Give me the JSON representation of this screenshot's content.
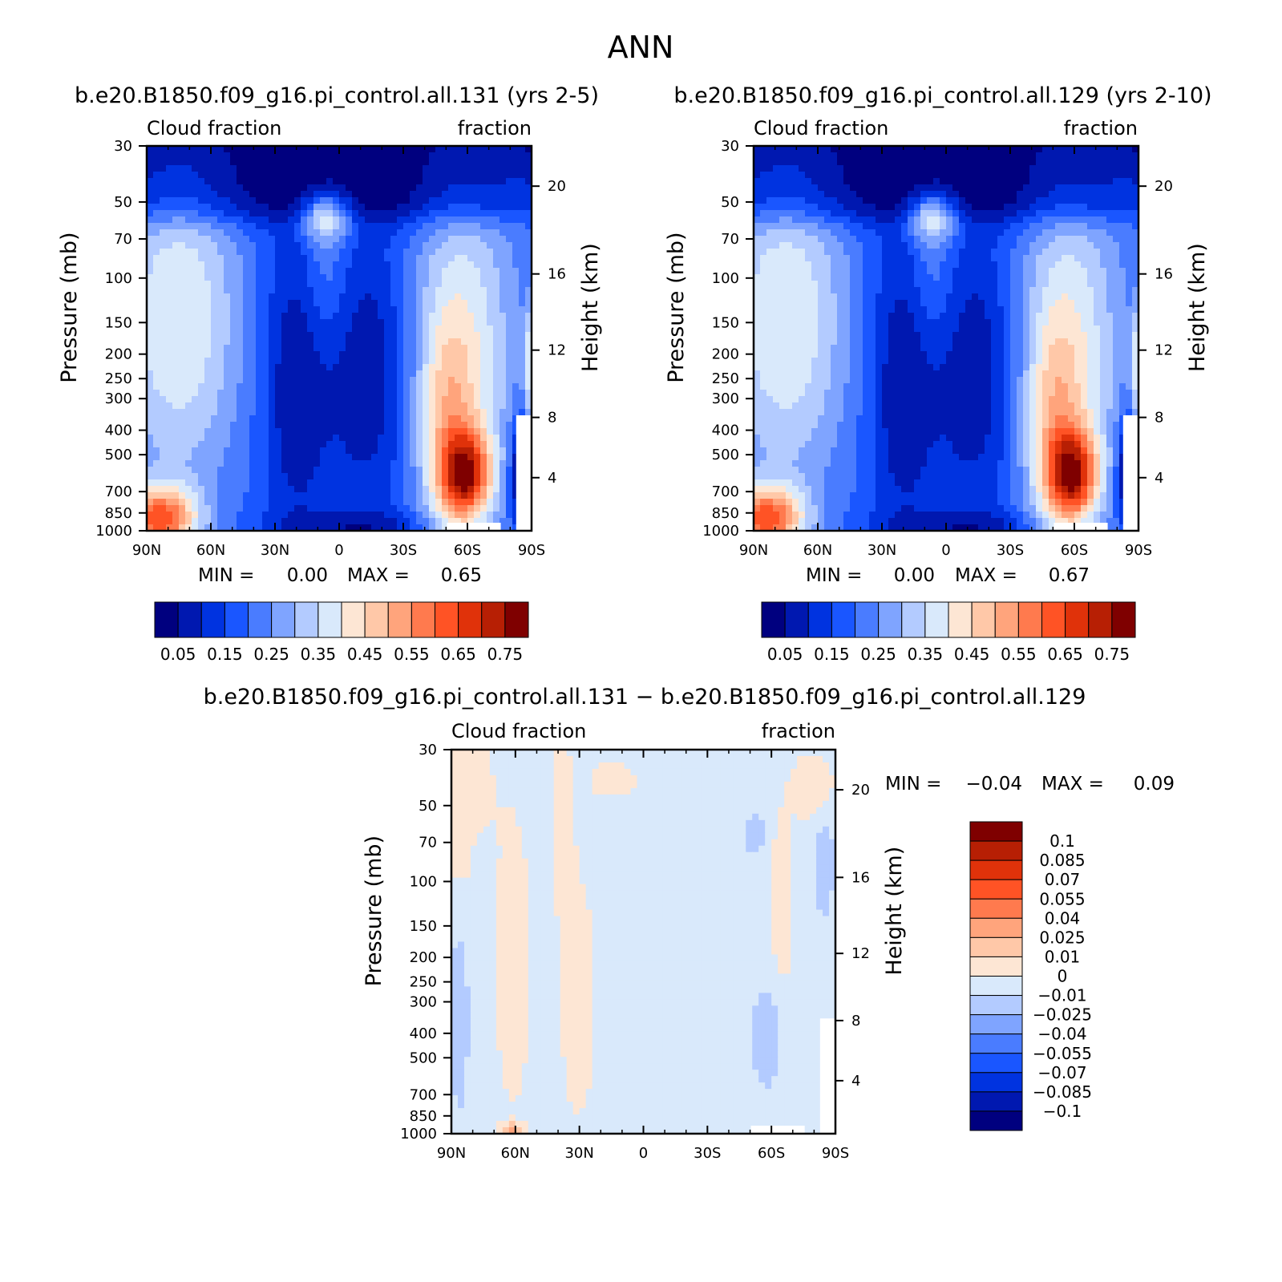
{
  "page_title": "ANN",
  "colors": {
    "main_scale": [
      "#00007f",
      "#0018b0",
      "#0033e0",
      "#1a56ff",
      "#4a7cff",
      "#7fa4ff",
      "#b3cbff",
      "#d9e9fb",
      "#fde6d4",
      "#ffc8a8",
      "#ffa47c",
      "#ff7a4e",
      "#ff5325",
      "#e0320a",
      "#b71f04",
      "#7f0000"
    ],
    "diff_scale": [
      "#00007f",
      "#0018b0",
      "#0033e0",
      "#1a56ff",
      "#4a7cff",
      "#7fa4ff",
      "#b3cbff",
      "#d9e9fb",
      "#fde6d4",
      "#ffc8a8",
      "#ffa47c",
      "#ff7a4e",
      "#ff5325",
      "#e0320a",
      "#b71f04",
      "#7f0000"
    ]
  },
  "chart_data": [
    {
      "type": "heatmap",
      "title": "b.e20.B1850.f09_g16.pi_control.all.131 (yrs 2-5)",
      "left_string": "Cloud fraction",
      "right_string": "fraction",
      "ylabel": "Pressure (mb)",
      "ylabel_right": "Height (km)",
      "x_ticks": [
        "90N",
        "60N",
        "30N",
        "0",
        "30S",
        "60S",
        "90S"
      ],
      "y_ticks": [
        "30",
        "50",
        "70",
        "100",
        "150",
        "200",
        "250",
        "300",
        "400",
        "500",
        "700",
        "850",
        "1000"
      ],
      "y_right_ticks": [
        "20",
        "16",
        "12",
        "8",
        "4"
      ],
      "min_label": "MIN =",
      "min_value": "0.00",
      "max_label": "MAX =",
      "max_value": "0.65",
      "colorbar_labels": [
        "0.05",
        "0.15",
        "0.25",
        "0.35",
        "0.45",
        "0.55",
        "0.65",
        "0.75"
      ],
      "contour_levels": [
        0.05,
        0.1,
        0.15,
        0.2,
        0.25,
        0.3,
        0.35,
        0.4,
        0.45,
        0.5,
        0.55,
        0.6,
        0.65,
        0.7,
        0.75
      ]
    },
    {
      "type": "heatmap",
      "title": "b.e20.B1850.f09_g16.pi_control.all.129 (yrs 2-10)",
      "left_string": "Cloud fraction",
      "right_string": "fraction",
      "ylabel": "Pressure (mb)",
      "ylabel_right": "Height (km)",
      "x_ticks": [
        "90N",
        "60N",
        "30N",
        "0",
        "30S",
        "60S",
        "90S"
      ],
      "y_ticks": [
        "30",
        "50",
        "70",
        "100",
        "150",
        "200",
        "250",
        "300",
        "400",
        "500",
        "700",
        "850",
        "1000"
      ],
      "y_right_ticks": [
        "20",
        "16",
        "12",
        "8",
        "4"
      ],
      "min_label": "MIN =",
      "min_value": "0.00",
      "max_label": "MAX =",
      "max_value": "0.67",
      "colorbar_labels": [
        "0.05",
        "0.15",
        "0.25",
        "0.35",
        "0.45",
        "0.55",
        "0.65",
        "0.75"
      ],
      "contour_levels": [
        0.05,
        0.1,
        0.15,
        0.2,
        0.25,
        0.3,
        0.35,
        0.4,
        0.45,
        0.5,
        0.55,
        0.6,
        0.65,
        0.7,
        0.75
      ]
    },
    {
      "type": "heatmap",
      "title": "b.e20.B1850.f09_g16.pi_control.all.131 − b.e20.B1850.f09_g16.pi_control.all.129",
      "left_string": "Cloud fraction",
      "right_string": "fraction",
      "ylabel": "Pressure (mb)",
      "ylabel_right": "Height (km)",
      "x_ticks": [
        "90N",
        "60N",
        "30N",
        "0",
        "30S",
        "60S",
        "90S"
      ],
      "y_ticks": [
        "30",
        "50",
        "70",
        "100",
        "150",
        "200",
        "250",
        "300",
        "400",
        "500",
        "700",
        "850",
        "1000"
      ],
      "y_right_ticks": [
        "20",
        "16",
        "12",
        "8",
        "4"
      ],
      "min_label": "MIN =",
      "min_value": "−0.04",
      "max_label": "MAX =",
      "max_value": "0.09",
      "colorbar_labels": [
        "0.1",
        "0.085",
        "0.07",
        "0.055",
        "0.04",
        "0.025",
        "0.01",
        "0",
        "−0.01",
        "−0.025",
        "−0.04",
        "−0.055",
        "−0.07",
        "−0.085",
        "−0.1"
      ],
      "contour_levels": [
        -0.1,
        -0.085,
        -0.07,
        -0.055,
        -0.04,
        -0.025,
        -0.01,
        0,
        0.01,
        0.025,
        0.04,
        0.055,
        0.07,
        0.085,
        0.1
      ]
    }
  ]
}
